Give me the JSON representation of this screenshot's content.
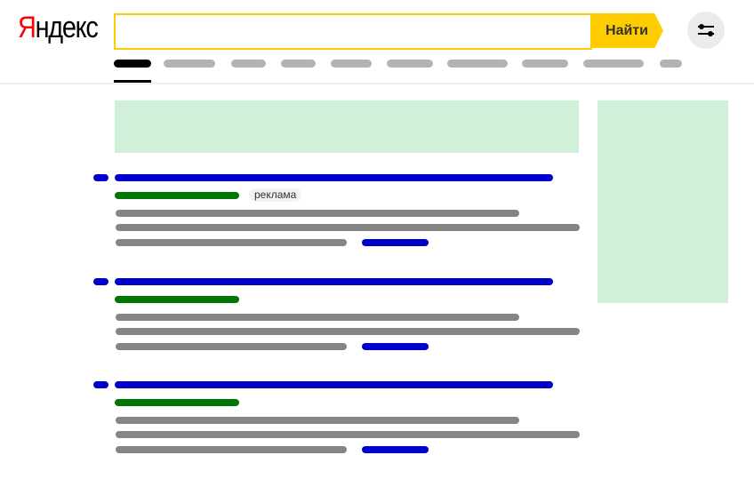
{
  "header": {
    "logo": "Яндекс",
    "search": {
      "value": "",
      "placeholder": ""
    },
    "search_button": "Найти",
    "settings_icon": "sliders-icon",
    "tabs_count": 10,
    "active_tab": 0
  },
  "results": [
    {
      "ad_label": "реклама"
    },
    {
      "ad_label": null
    },
    {
      "ad_label": null
    }
  ],
  "colors": {
    "accent": "#ffcc00",
    "link": "#0000cc",
    "url": "#007700",
    "ad_block": "#d0f0da"
  }
}
